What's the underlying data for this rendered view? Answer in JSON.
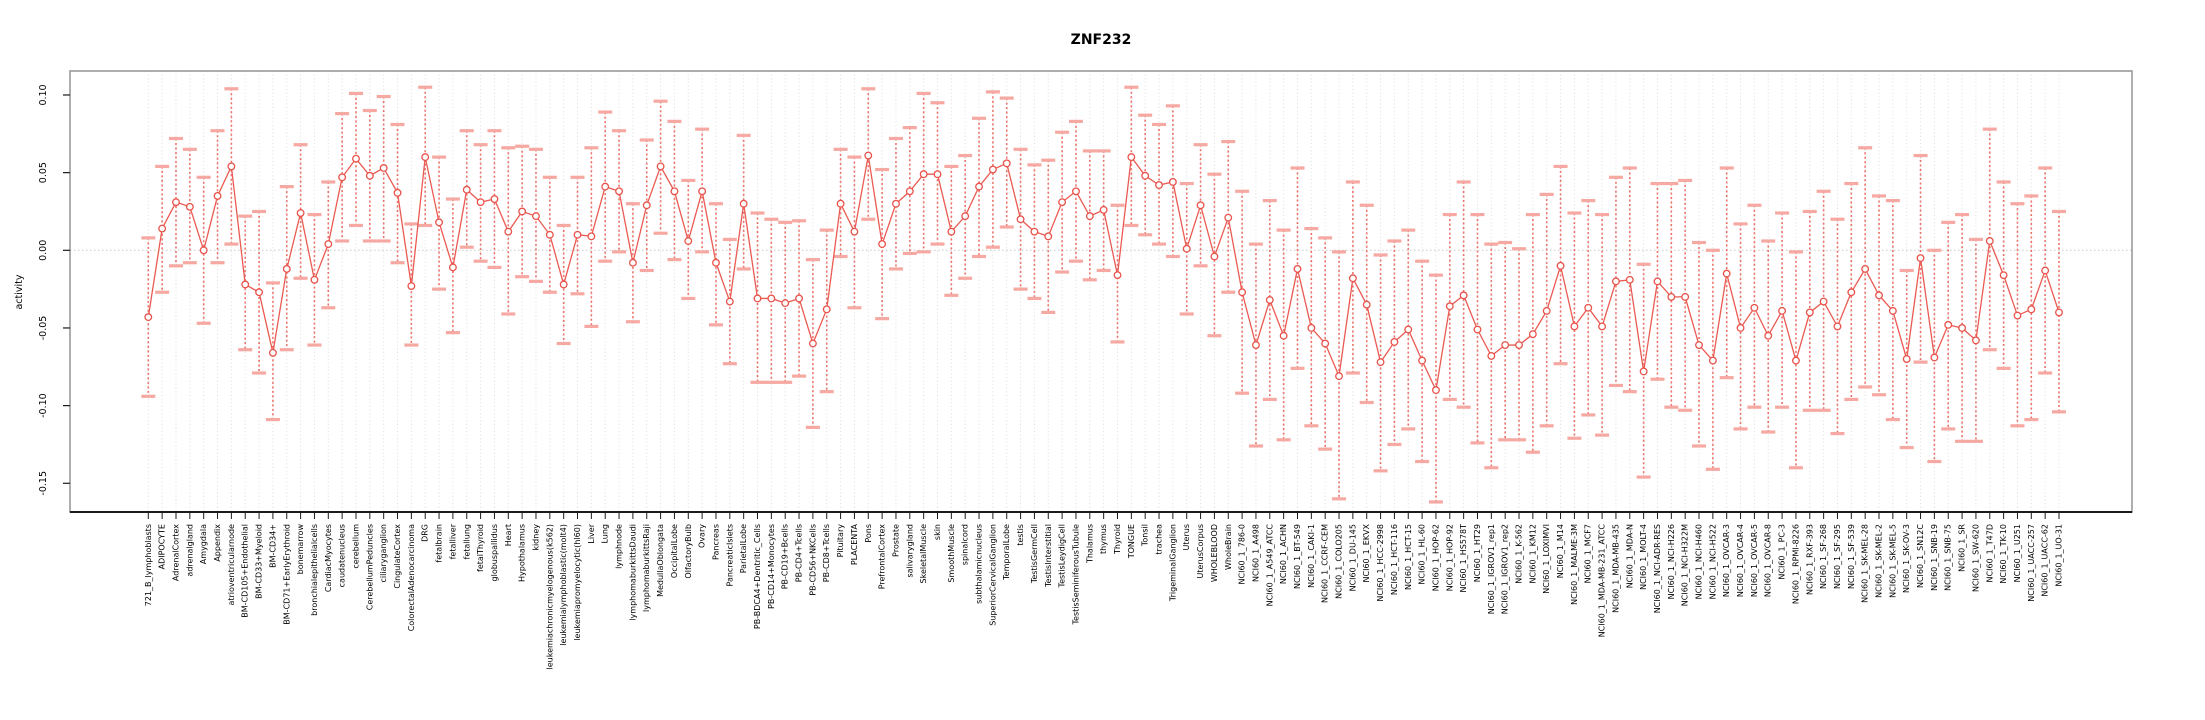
{
  "chart_data": {
    "type": "line",
    "title": "ZNF232",
    "xlabel": "",
    "ylabel": "activity",
    "ylim": [
      -0.17,
      0.115
    ],
    "yticks": [
      0.1,
      0.05,
      0.0,
      -0.05,
      -0.1,
      -0.15
    ],
    "ytick_labels": [
      "0.10",
      "0.05",
      "0.00",
      "-0.05",
      "-0.10",
      "-0.15"
    ],
    "grid": "vertical dotted gridline per category, dotted horizontal line at 0",
    "legend": "none",
    "error_bars": true,
    "marker": "open-circle",
    "categories": [
      "721_B_lymphoblasts",
      "ADIPOCYTE",
      "AdrenalCortex",
      "adrenalgland",
      "Amygdala",
      "Appendix",
      "atrioventricularnode",
      "BM-CD105+Endothelial",
      "BM-CD33+Myeloid",
      "BM-CD34+",
      "BM-CD71+EarlyErythroid",
      "bonemarrow",
      "bronchialepithelialcells",
      "CardiacMyocytes",
      "caudatenucleus",
      "cerebellum",
      "CerebellumPeduncles",
      "ciliaryganglion",
      "CingulateCortex",
      "ColorectalAdenocarcinoma",
      "DRG",
      "fetalbrain",
      "fetalliver",
      "fetallung",
      "fetalThyroid",
      "globuspallidus",
      "Heart",
      "Hypothalamus",
      "kidney",
      "leukemiachronicmyelogenous(k562)",
      "leukemialymphoblastic(molt4)",
      "leukemiapromyelocytic(hl60)",
      "Liver",
      "Lung",
      "lymphnode",
      "lymphomaburkittsDaudi",
      "lymphomaburkittsRaji",
      "MedullaOblongata",
      "OccipitalLobe",
      "OlfactoryBulb",
      "Ovary",
      "Pancreas",
      "PancreaticIslets",
      "ParietalLobe",
      "PB-BDCA4+Dentritic_Cells",
      "PB-CD14+Monocytes",
      "PB-CD19+Bcells",
      "PB-CD4+Tcells",
      "PB-CD56+NKCells",
      "PB-CD8+Tcells",
      "Pituitary",
      "PLACENTA",
      "Pons",
      "PrefrontalCortex",
      "Prostate",
      "salivarygland",
      "SkeletalMuscle",
      "skin",
      "SmoothMuscle",
      "spinalcord",
      "subthalamicnucleus",
      "SuperiorCervicalGanglion",
      "TemporalLobe",
      "testis",
      "TestisGermCell",
      "TestisInterstitial",
      "TestisLeydigCell",
      "TestisSeminiferousTubule",
      "Thalamus",
      "thymus",
      "Thyroid",
      "TONGUE",
      "Tonsil",
      "trachea",
      "TrigeminalGanglion",
      "Uterus",
      "UterusCorpus",
      "WHOLEBLOOD",
      "WholeBrain",
      "NCI60_1_786-0",
      "NCI60_1_A498",
      "NCI60_1_A549_ATCC",
      "NCI60_1_ACHN",
      "NCI60_1_BT-549",
      "NCI60_1_CAKI-1",
      "NCI60_1_CCRF-CEM",
      "NCI60_1_COLO205",
      "NCI60_1_DU-145",
      "NCI60_1_EKVX",
      "NCI60_1_HCC-2998",
      "NCI60_1_HCT-116",
      "NCI60_1_HCT-15",
      "NCI60_1_HL-60",
      "NCI60_1_HOP-62",
      "NCI60_1_HOP-92",
      "NCI60_1_HS578T",
      "NCI60_1_HT29",
      "NCI60_1_IGROV1_rep1",
      "NCI60_1_IGROV1_rep2",
      "NCI60_1_K-562",
      "NCI60_1_KM12",
      "NCI60_1_LOXIMVI",
      "NCI60_1_M14",
      "NCI60_1_MALME-3M",
      "NCI60_1_MCF7",
      "NCI60_1_MDA-MB-231_ATCC",
      "NCI60_1_MDA-MB-435",
      "NCI60_1_MDA-N",
      "NCI60_1_MOLT-4",
      "NCI60_1_NCI-ADR-RES",
      "NCI60_1_NCI-H226",
      "NCI60_1_NCI-H322M",
      "NCI60_1_NCI-H460",
      "NCI60_1_NCI-H522",
      "NCI60_1_OVCAR-3",
      "NCI60_1_OVCAR-4",
      "NCI60_1_OVCAR-5",
      "NCI60_1_OVCAR-8",
      "NCI60_1_PC-3",
      "NCI60_1_RPMI-8226",
      "NCI60_1_RXF-393",
      "NCI60_1_SF-268",
      "NCI60_1_SF-295",
      "NCI60_1_SF-539",
      "NCI60_1_SK-MEL-28",
      "NCI60_1_SK-MEL-2",
      "NCI60_1_SK-MEL-5",
      "NCI60_1_SK-OV-3",
      "NCI60_1_SN12C",
      "NCI60_1_SNB-19",
      "NCI60_1_SNB-75",
      "NCI60_1_SR",
      "NCI60_1_SW-620",
      "NCI60_1_T47D",
      "NCI60_1_TK-10",
      "NCI60_1_U251",
      "NCI60_1_UACC-257",
      "NCI60_1_UACC-62",
      "NCI60_1_UO-31"
    ],
    "values": [
      -0.043,
      0.014,
      0.031,
      0.028,
      0.0,
      0.035,
      0.054,
      -0.022,
      -0.027,
      -0.066,
      -0.012,
      0.024,
      -0.019,
      0.004,
      0.047,
      0.059,
      0.048,
      0.053,
      0.037,
      -0.023,
      0.06,
      0.018,
      -0.011,
      0.039,
      0.031,
      0.033,
      0.012,
      0.025,
      0.022,
      0.01,
      -0.022,
      0.01,
      0.009,
      0.041,
      0.038,
      -0.008,
      0.029,
      0.054,
      0.038,
      0.006,
      0.038,
      -0.008,
      -0.033,
      0.03,
      -0.031,
      -0.031,
      -0.034,
      -0.031,
      -0.06,
      -0.038,
      0.03,
      0.012,
      0.061,
      0.004,
      0.03,
      0.038,
      0.049,
      0.049,
      0.012,
      0.022,
      0.041,
      0.052,
      0.056,
      0.02,
      0.012,
      0.009,
      0.031,
      0.038,
      0.022,
      0.026,
      -0.016,
      0.06,
      0.048,
      0.042,
      0.044,
      0.001,
      0.029,
      -0.004,
      0.021,
      -0.027,
      -0.061,
      -0.032,
      -0.055,
      -0.012,
      -0.05,
      -0.06,
      -0.081,
      -0.018,
      -0.035,
      -0.072,
      -0.059,
      -0.051,
      -0.071,
      -0.09,
      -0.036,
      -0.029,
      -0.051,
      -0.068,
      -0.061,
      -0.061,
      -0.054,
      -0.039,
      -0.01,
      -0.049,
      -0.037,
      -0.049,
      -0.02,
      -0.019,
      -0.078,
      -0.02,
      -0.03,
      -0.03,
      -0.061,
      -0.071,
      -0.015,
      -0.05,
      -0.037,
      -0.055,
      -0.039,
      -0.071,
      -0.04,
      -0.033,
      -0.049,
      -0.027,
      -0.012,
      -0.029,
      -0.039,
      -0.07,
      -0.005,
      -0.069,
      -0.048,
      -0.05,
      -0.058,
      0.006,
      -0.016,
      -0.042,
      -0.038,
      -0.013,
      -0.04
    ],
    "upper": [
      0.008,
      0.054,
      0.072,
      0.065,
      0.047,
      0.077,
      0.104,
      0.022,
      0.025,
      -0.021,
      0.041,
      0.068,
      0.023,
      0.044,
      0.088,
      0.101,
      0.09,
      0.099,
      0.081,
      0.017,
      0.105,
      0.06,
      0.033,
      0.077,
      0.068,
      0.077,
      0.066,
      0.067,
      0.065,
      0.047,
      0.016,
      0.047,
      0.066,
      0.089,
      0.077,
      0.03,
      0.071,
      0.096,
      0.083,
      0.045,
      0.078,
      0.03,
      0.007,
      0.074,
      0.024,
      0.02,
      0.018,
      0.019,
      -0.006,
      0.013,
      0.065,
      0.06,
      0.104,
      0.052,
      0.072,
      0.079,
      0.101,
      0.095,
      0.054,
      0.061,
      0.085,
      0.102,
      0.098,
      0.065,
      0.055,
      0.058,
      0.076,
      0.083,
      0.064,
      0.064,
      0.029,
      0.105,
      0.087,
      0.081,
      0.093,
      0.043,
      0.068,
      0.049,
      0.07,
      0.038,
      0.004,
      0.032,
      0.013,
      0.053,
      0.014,
      0.008,
      -0.001,
      0.044,
      0.029,
      -0.003,
      0.006,
      0.013,
      -0.007,
      -0.016,
      0.023,
      0.044,
      0.023,
      0.004,
      0.005,
      0.001,
      0.023,
      0.036,
      0.054,
      0.024,
      0.032,
      0.023,
      0.047,
      0.053,
      -0.009,
      0.043,
      0.043,
      0.045,
      0.005,
      0.0,
      0.053,
      0.017,
      0.029,
      0.006,
      0.024,
      -0.001,
      0.025,
      0.038,
      0.02,
      0.043,
      0.066,
      0.035,
      0.032,
      -0.013,
      0.061,
      0.0,
      0.018,
      0.023,
      0.007,
      0.078,
      0.044,
      0.03,
      0.035,
      0.053,
      0.025
    ],
    "lower": [
      -0.094,
      -0.027,
      -0.01,
      -0.008,
      -0.047,
      -0.008,
      0.004,
      -0.064,
      -0.079,
      -0.109,
      -0.064,
      -0.018,
      -0.061,
      -0.037,
      0.006,
      0.016,
      0.006,
      0.006,
      -0.008,
      -0.061,
      0.016,
      -0.025,
      -0.053,
      0.002,
      -0.007,
      -0.011,
      -0.041,
      -0.017,
      -0.02,
      -0.027,
      -0.06,
      -0.028,
      -0.049,
      -0.007,
      -0.001,
      -0.046,
      -0.013,
      0.011,
      -0.006,
      -0.031,
      -0.001,
      -0.048,
      -0.073,
      -0.012,
      -0.085,
      -0.085,
      -0.085,
      -0.081,
      -0.114,
      -0.091,
      -0.004,
      -0.037,
      0.02,
      -0.044,
      -0.012,
      -0.002,
      -0.001,
      0.004,
      -0.029,
      -0.018,
      -0.004,
      0.002,
      0.015,
      -0.025,
      -0.031,
      -0.04,
      -0.014,
      -0.007,
      -0.019,
      -0.013,
      -0.059,
      0.016,
      0.01,
      0.004,
      -0.004,
      -0.041,
      -0.01,
      -0.055,
      -0.027,
      -0.092,
      -0.126,
      -0.096,
      -0.122,
      -0.076,
      -0.113,
      -0.128,
      -0.16,
      -0.079,
      -0.098,
      -0.142,
      -0.125,
      -0.115,
      -0.136,
      -0.162,
      -0.096,
      -0.101,
      -0.124,
      -0.14,
      -0.122,
      -0.122,
      -0.13,
      -0.113,
      -0.073,
      -0.121,
      -0.106,
      -0.119,
      -0.087,
      -0.091,
      -0.146,
      -0.083,
      -0.101,
      -0.103,
      -0.126,
      -0.141,
      -0.082,
      -0.115,
      -0.101,
      -0.117,
      -0.101,
      -0.14,
      -0.103,
      -0.103,
      -0.118,
      -0.096,
      -0.088,
      -0.093,
      -0.109,
      -0.127,
      -0.072,
      -0.136,
      -0.115,
      -0.123,
      -0.123,
      -0.064,
      -0.076,
      -0.113,
      -0.109,
      -0.079,
      -0.104
    ]
  },
  "colors": {
    "series_line": "#ea5a52",
    "marker_stroke": "#e8524a",
    "error_stem": "#ec6a62",
    "error_cap": "#f6a9a2",
    "gridline": "#dcdcdc",
    "zero_line": "#c8c8c8",
    "frame": "#9a9a9a",
    "axis": "#1a1a1a",
    "text": "#000000"
  }
}
